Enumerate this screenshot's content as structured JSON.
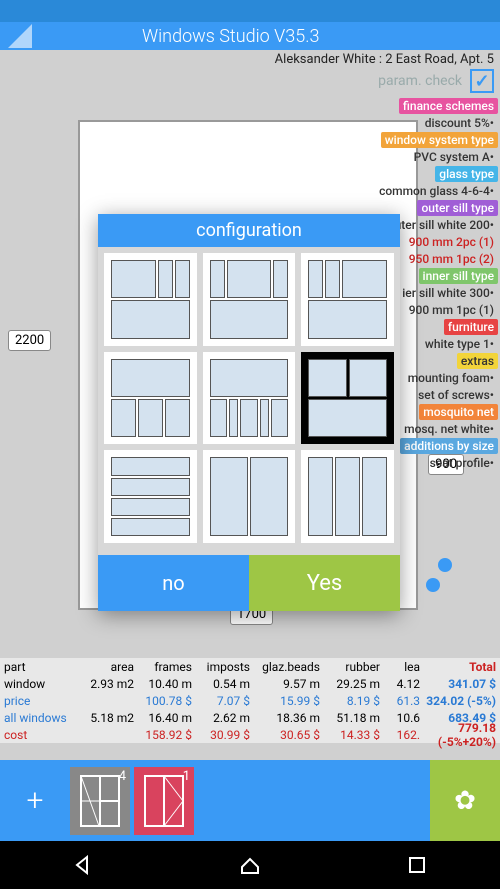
{
  "app": {
    "title": "Windows Studio V35.3"
  },
  "customer": "Aleksander White : 2 East Road, Apt. 5",
  "param_check": {
    "label": "param. check",
    "checked": true
  },
  "dimensions": {
    "height": "2200",
    "width_right": "900",
    "width_bottom": "1700"
  },
  "tags": [
    {
      "kind": "pill",
      "text": "finance schemes",
      "bg": "#e753a0"
    },
    {
      "kind": "line",
      "text": "discount 5%•"
    },
    {
      "kind": "pill",
      "text": "window system type",
      "bg": "#f2a43a"
    },
    {
      "kind": "line",
      "text": "PVC system A•"
    },
    {
      "kind": "pill",
      "text": "glass type",
      "bg": "#45b5e8"
    },
    {
      "kind": "line",
      "text": "common glass 4-6-4•"
    },
    {
      "kind": "pill",
      "text": "outer sill type",
      "bg": "#a05ed6"
    },
    {
      "kind": "line",
      "text": "outer sill white 200•"
    },
    {
      "kind": "line",
      "text": "900 mm  2pc (1)",
      "color": "#c22"
    },
    {
      "kind": "line",
      "text": "950 mm  1pc (2)",
      "color": "#c22"
    },
    {
      "kind": "pill",
      "text": "inner sill type",
      "bg": "#7fc66b"
    },
    {
      "kind": "line",
      "text": "ier sill white 300•"
    },
    {
      "kind": "line",
      "text": "900 mm  1pc (1)"
    },
    {
      "kind": "pill",
      "text": "furniture",
      "bg": "#e74343"
    },
    {
      "kind": "line",
      "text": "white type 1•"
    },
    {
      "kind": "pill",
      "text": "extras",
      "bg": "#f2d43a",
      "fg": "#333"
    },
    {
      "kind": "line",
      "text": "mounting foam•"
    },
    {
      "kind": "line",
      "text": "set of screws•"
    },
    {
      "kind": "pill",
      "text": "mosquito net",
      "bg": "#f2843a"
    },
    {
      "kind": "line",
      "text": "mosq. net white•"
    },
    {
      "kind": "pill",
      "text": "additions by size",
      "bg": "#5aa8e0"
    },
    {
      "kind": "line",
      "text": "seat profile•"
    }
  ],
  "modal": {
    "title": "configuration",
    "no": "no",
    "yes": "Yes",
    "selected_index": 5,
    "configs": [
      {
        "rows": [
          [
            60,
            18,
            18
          ],
          [
            60
          ]
        ]
      },
      {
        "rows": [
          [
            18,
            60,
            18
          ],
          [
            60
          ]
        ]
      },
      {
        "rows": [
          [
            18,
            18,
            60
          ],
          [
            60
          ]
        ]
      },
      {
        "rows": [
          [
            60
          ],
          [
            30,
            30,
            30
          ]
        ]
      },
      {
        "rows": [
          [
            60
          ],
          [
            22,
            10,
            22,
            10,
            22
          ]
        ]
      },
      {
        "rows": [
          [
            48,
            48
          ],
          [
            48
          ]
        ]
      },
      {
        "rows": [
          [
            96
          ],
          [
            96
          ],
          [
            96
          ],
          [
            96
          ]
        ]
      },
      {
        "rows": [
          [
            44,
            44
          ]
        ],
        "tall": true
      },
      {
        "rows": [
          [
            30,
            30,
            30
          ]
        ],
        "tall": true
      }
    ]
  },
  "table": {
    "headers": [
      "part",
      "area",
      "frames",
      "imposts",
      "glaz.beads",
      "rubber",
      "lea",
      "Total"
    ],
    "rows": [
      {
        "cells": [
          "window",
          "2.93 m2",
          "10.40 m",
          "0.54 m",
          "9.57 m",
          "29.25 m",
          "4.12",
          "341.07 $"
        ],
        "cls": [
          "",
          "",
          "",
          "",
          "",
          "",
          "",
          "blue bold"
        ]
      },
      {
        "cells": [
          "price",
          "",
          "100.78 $",
          "7.07 $",
          "15.99 $",
          "8.19 $",
          "61.3",
          "324.02 (-5%)"
        ],
        "cls": [
          "blue",
          "",
          "blue",
          "blue",
          "blue",
          "blue",
          "blue",
          "blue bold"
        ]
      },
      {
        "cells": [
          "all windows",
          "5.18 m2",
          "16.40 m",
          "2.62 m",
          "18.36 m",
          "51.18 m",
          "10.6",
          "683.49 $"
        ],
        "cls": [
          "blue",
          "",
          "",
          "",
          "",
          "",
          "",
          "blue bold"
        ]
      },
      {
        "cells": [
          "cost",
          "",
          "158.92 $",
          "30.99 $",
          "30.65 $",
          "14.33 $",
          "162.",
          "779.18 (-5%+20%)"
        ],
        "cls": [
          "red",
          "",
          "red",
          "red",
          "red",
          "red",
          "red",
          "red bold"
        ]
      }
    ]
  },
  "bottom": {
    "thumb1_num": "4",
    "thumb2_num": "1"
  }
}
